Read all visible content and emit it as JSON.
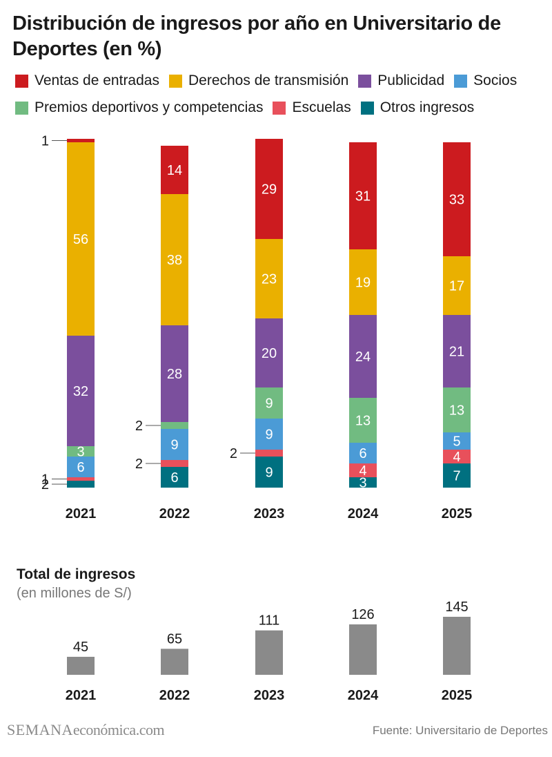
{
  "title": "Distribución de ingresos por año en Universitario de Deportes (en %)",
  "legend": {
    "row1": [
      {
        "name": "Ventas de entradas",
        "color": "#cc1b1f"
      },
      {
        "name": "Derechos de transmisión",
        "color": "#eab000"
      },
      {
        "name": "Publicidad",
        "color": "#7b4f9d"
      },
      {
        "name": "Socios",
        "color": "#4b9bd6"
      }
    ],
    "row2": [
      {
        "name": "Premios deportivos y competencias",
        "color": "#71bb81"
      },
      {
        "name": "Escuelas",
        "color": "#e8505b"
      },
      {
        "name": "Otros ingresos",
        "color": "#007080"
      }
    ]
  },
  "chart_data": [
    {
      "type": "bar",
      "stacked": true,
      "title": "Distribución de ingresos por año en Universitario de Deportes (en %)",
      "categories": [
        "2021",
        "2022",
        "2023",
        "2024",
        "2025"
      ],
      "ylim": [
        0,
        100
      ],
      "series": [
        {
          "name": "Otros ingresos",
          "color": "#007080",
          "values": [
            2,
            6,
            9,
            3,
            7
          ]
        },
        {
          "name": "Escuelas",
          "color": "#e8505b",
          "values": [
            1,
            2,
            2,
            4,
            4
          ]
        },
        {
          "name": "Socios",
          "color": "#4b9bd6",
          "values": [
            6,
            9,
            9,
            6,
            5
          ]
        },
        {
          "name": "Premios deportivos y competencias",
          "color": "#71bb81",
          "values": [
            3,
            2,
            9,
            13,
            13
          ]
        },
        {
          "name": "Publicidad",
          "color": "#7b4f9d",
          "values": [
            32,
            28,
            20,
            24,
            21
          ]
        },
        {
          "name": "Derechos de transmisión",
          "color": "#eab000",
          "values": [
            56,
            38,
            23,
            19,
            17
          ]
        },
        {
          "name": "Ventas de entradas",
          "color": "#cc1b1f",
          "values": [
            1,
            14,
            29,
            31,
            33
          ]
        }
      ]
    },
    {
      "type": "bar",
      "title": "Total de ingresos",
      "subtitle": "(en millones de S/)",
      "categories": [
        "2021",
        "2022",
        "2023",
        "2024",
        "2025"
      ],
      "values": [
        45,
        65,
        111,
        126,
        145
      ],
      "ylim": [
        0,
        145
      ],
      "color": "#8a8a8a"
    }
  ],
  "totals": {
    "title": "Total de ingresos",
    "subtitle": "(en millones de S/)"
  },
  "footer": {
    "brand_part1": "SEMANA",
    "brand_part2": "económica.com",
    "source": "Fuente: Universitario de Deportes"
  }
}
